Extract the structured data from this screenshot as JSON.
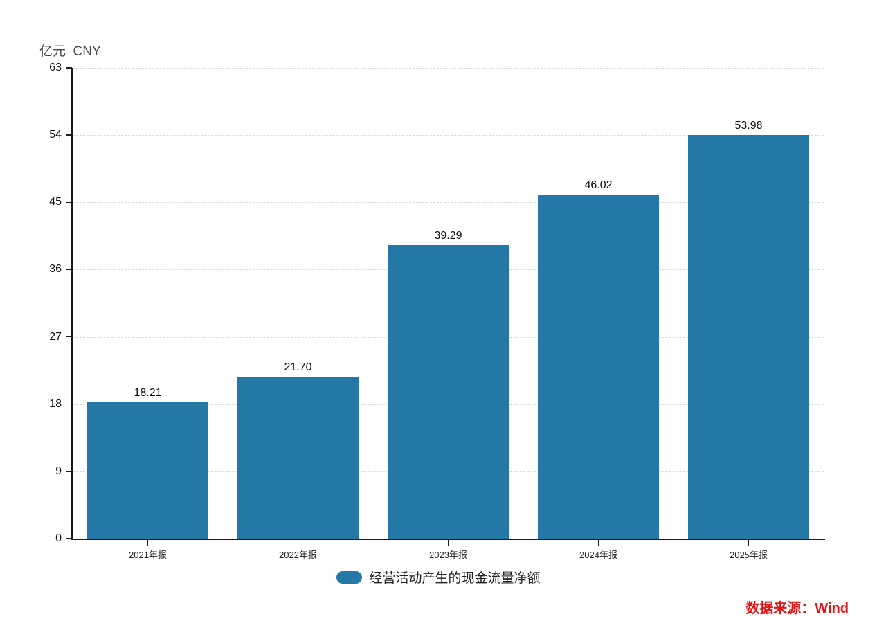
{
  "chart_data": {
    "type": "bar",
    "unit_label": "亿元  CNY",
    "categories": [
      "2021年报",
      "2022年报",
      "2023年报",
      "2024年报",
      "2025年报"
    ],
    "series": [
      {
        "name": "经营活动产生的现金流量净额",
        "values": [
          18.21,
          21.7,
          39.29,
          46.02,
          53.98
        ],
        "value_labels": [
          "18.21",
          "21.70",
          "39.29",
          "46.02",
          "53.98"
        ],
        "color": "#2378a5"
      }
    ],
    "y_ticks": [
      0,
      9,
      18,
      27,
      36,
      45,
      54,
      63
    ],
    "ylim": [
      0,
      63
    ],
    "xlabel": "",
    "ylabel": "亿元 CNY",
    "grid": "horizontal-dashed",
    "gridline_color": "#d9d9d9",
    "axis_color": "#1a1a1a",
    "legend_position": "bottom-center",
    "source_note": "数据来源：Wind",
    "source_color": "#e01414"
  }
}
